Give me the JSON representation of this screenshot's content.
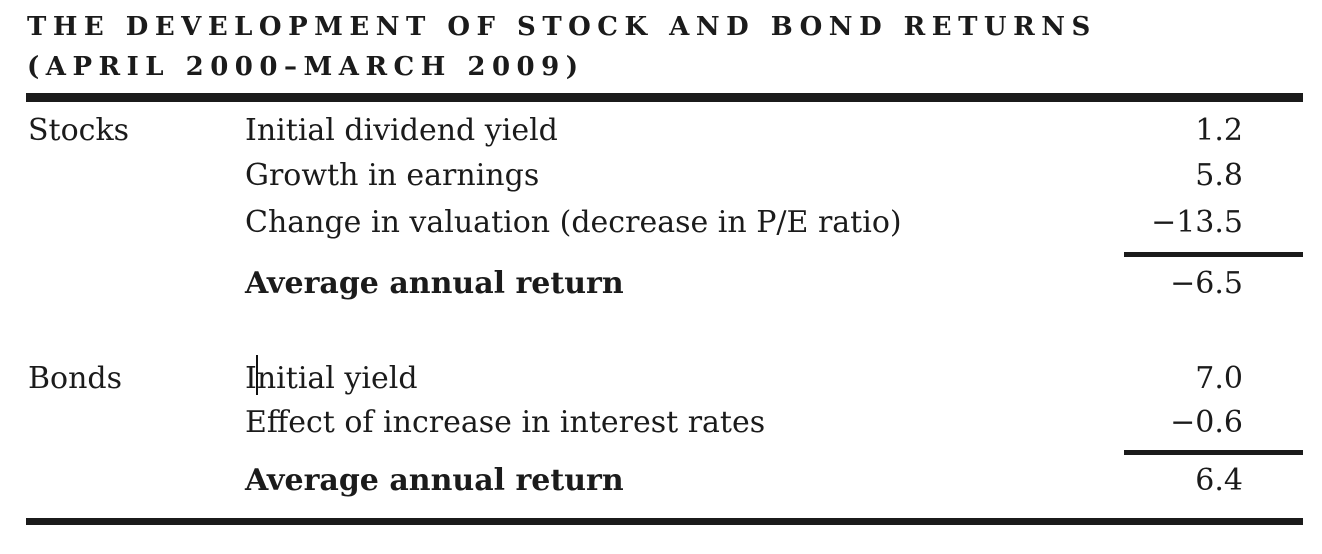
{
  "figure": {
    "title_line1": "THE DEVELOPMENT OF STOCK AND BOND RETURNS",
    "title_line2": "(APRIL 2000–MARCH 2009)"
  },
  "table": {
    "sections": [
      {
        "category": "Stocks",
        "rows": [
          {
            "label": "Initial dividend yield",
            "value": "1.2"
          },
          {
            "label": "Growth in earnings",
            "value": "5.8"
          },
          {
            "label": "Change in valuation (decrease in P/E ratio)",
            "value": "−13.5"
          }
        ],
        "total_label": "Average annual return",
        "total_value": "−6.5"
      },
      {
        "category": "Bonds",
        "rows": [
          {
            "label": "Initial yield",
            "value": "7.0"
          },
          {
            "label": "Effect of increase in interest rates",
            "value": "−0.6"
          }
        ],
        "total_label": "Average annual return",
        "total_value": "6.4"
      }
    ]
  },
  "cursor": {
    "visible": true,
    "location": "after the letter I in the row label Initial yield"
  },
  "colors": {
    "ink": "#1b1b1b",
    "background": "#ffffff"
  }
}
